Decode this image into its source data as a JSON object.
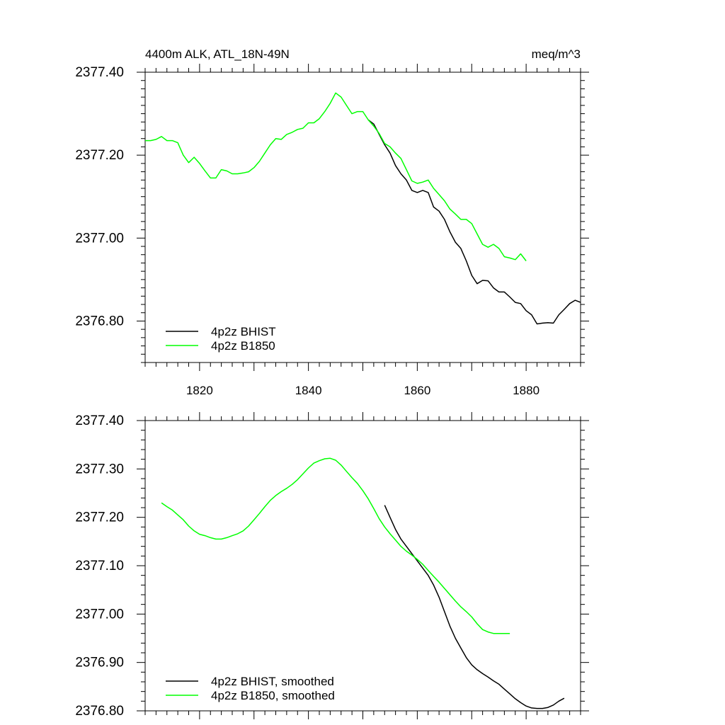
{
  "chart_data": [
    {
      "type": "line",
      "title": "4400m ALK, ATL_18N-49N",
      "units": "meq/m^3",
      "xlim": [
        1810,
        1890
      ],
      "ylim": [
        2376.7,
        2377.4
      ],
      "x_ticks": [
        "1820",
        "1840",
        "1860",
        "1880"
      ],
      "y_ticks": [
        "2376.80",
        "2377.00",
        "2377.20",
        "2377.40"
      ],
      "legend_position": "bottom-left",
      "series": [
        {
          "name": "4p2z BHIST",
          "color": "#000000",
          "x": [
            1851,
            1852,
            1853,
            1854,
            1855,
            1856,
            1857,
            1858,
            1859,
            1860,
            1861,
            1862,
            1863,
            1864,
            1865,
            1866,
            1867,
            1868,
            1869,
            1870,
            1871,
            1872,
            1873,
            1874,
            1875,
            1876,
            1877,
            1878,
            1879,
            1880,
            1881,
            1882,
            1883,
            1884,
            1885,
            1886,
            1887,
            1888,
            1889,
            1890
          ],
          "y": [
            2377.285,
            2377.275,
            2377.25,
            2377.225,
            2377.205,
            2377.175,
            2377.155,
            2377.14,
            2377.115,
            2377.11,
            2377.115,
            2377.11,
            2377.075,
            2377.065,
            2377.045,
            2377.015,
            2376.99,
            2376.975,
            2376.945,
            2376.91,
            2376.89,
            2376.898,
            2376.897,
            2376.88,
            2376.87,
            2376.87,
            2376.858,
            2376.845,
            2376.842,
            2376.825,
            2376.815,
            2376.793,
            2376.795,
            2376.796,
            2376.795,
            2376.815,
            2376.828,
            2376.842,
            2376.85,
            2376.845
          ]
        },
        {
          "name": "4p2z B1850",
          "color": "#00ff00",
          "x": [
            1810,
            1811,
            1812,
            1813,
            1814,
            1815,
            1816,
            1817,
            1818,
            1819,
            1820,
            1821,
            1822,
            1823,
            1824,
            1825,
            1826,
            1827,
            1828,
            1829,
            1830,
            1831,
            1832,
            1833,
            1834,
            1835,
            1836,
            1837,
            1838,
            1839,
            1840,
            1841,
            1842,
            1843,
            1844,
            1845,
            1846,
            1847,
            1848,
            1849,
            1850,
            1851,
            1852,
            1853,
            1854,
            1855,
            1856,
            1857,
            1858,
            1859,
            1860,
            1861,
            1862,
            1863,
            1864,
            1865,
            1866,
            1867,
            1868,
            1869,
            1870,
            1871,
            1872,
            1873,
            1874,
            1875,
            1876,
            1877,
            1878,
            1879,
            1880
          ],
          "y": [
            2377.235,
            2377.235,
            2377.238,
            2377.245,
            2377.235,
            2377.235,
            2377.23,
            2377.2,
            2377.182,
            2377.195,
            2377.18,
            2377.162,
            2377.145,
            2377.145,
            2377.165,
            2377.162,
            2377.155,
            2377.155,
            2377.157,
            2377.16,
            2377.17,
            2377.185,
            2377.205,
            2377.225,
            2377.24,
            2377.238,
            2377.25,
            2377.255,
            2377.262,
            2377.265,
            2377.278,
            2377.278,
            2377.288,
            2377.305,
            2377.325,
            2377.35,
            2377.34,
            2377.32,
            2377.3,
            2377.305,
            2377.305,
            2377.285,
            2377.27,
            2377.252,
            2377.228,
            2377.22,
            2377.205,
            2377.192,
            2377.165,
            2377.138,
            2377.132,
            2377.135,
            2377.14,
            2377.12,
            2377.105,
            2377.09,
            2377.07,
            2377.058,
            2377.045,
            2377.045,
            2377.035,
            2377.01,
            2376.985,
            2376.978,
            2376.985,
            2376.975,
            2376.955,
            2376.952,
            2376.948,
            2376.962,
            2376.945
          ]
        }
      ]
    },
    {
      "type": "line",
      "xlim": [
        1810,
        1890
      ],
      "ylim": [
        2376.8,
        2377.4
      ],
      "y_ticks": [
        "2376.80",
        "2376.90",
        "2377.00",
        "2377.10",
        "2377.20",
        "2377.30",
        "2377.40"
      ],
      "legend_position": "bottom-left",
      "series": [
        {
          "name": "4p2z BHIST, smoothed",
          "color": "#000000",
          "x": [
            1854,
            1855,
            1856,
            1857,
            1858,
            1859,
            1860,
            1861,
            1862,
            1863,
            1864,
            1865,
            1866,
            1867,
            1868,
            1869,
            1870,
            1871,
            1872,
            1873,
            1874,
            1875,
            1876,
            1877,
            1878,
            1879,
            1880,
            1881,
            1882,
            1883,
            1884,
            1885,
            1886,
            1887
          ],
          "y": [
            2377.225,
            2377.2,
            2377.175,
            2377.155,
            2377.14,
            2377.125,
            2377.11,
            2377.095,
            2377.08,
            2377.06,
            2377.035,
            2377.005,
            2376.975,
            2376.95,
            2376.93,
            2376.91,
            2376.895,
            2376.885,
            2376.877,
            2376.87,
            2376.862,
            2376.855,
            2376.845,
            2376.835,
            2376.825,
            2376.817,
            2376.81,
            2376.806,
            2376.805,
            2376.805,
            2376.807,
            2376.812,
            2376.82,
            2376.826
          ]
        },
        {
          "name": "4p2z B1850, smoothed",
          "color": "#00ff00",
          "x": [
            1813,
            1814,
            1815,
            1816,
            1817,
            1818,
            1819,
            1820,
            1821,
            1822,
            1823,
            1824,
            1825,
            1826,
            1827,
            1828,
            1829,
            1830,
            1831,
            1832,
            1833,
            1834,
            1835,
            1836,
            1837,
            1838,
            1839,
            1840,
            1841,
            1842,
            1843,
            1844,
            1845,
            1846,
            1847,
            1848,
            1849,
            1850,
            1851,
            1852,
            1853,
            1854,
            1855,
            1856,
            1857,
            1858,
            1859,
            1860,
            1861,
            1862,
            1863,
            1864,
            1865,
            1866,
            1867,
            1868,
            1869,
            1870,
            1871,
            1872,
            1873,
            1874,
            1875,
            1876,
            1877
          ],
          "y": [
            2377.23,
            2377.222,
            2377.215,
            2377.205,
            2377.195,
            2377.182,
            2377.172,
            2377.165,
            2377.162,
            2377.158,
            2377.155,
            2377.155,
            2377.158,
            2377.162,
            2377.166,
            2377.172,
            2377.182,
            2377.195,
            2377.208,
            2377.222,
            2377.235,
            2377.245,
            2377.253,
            2377.26,
            2377.268,
            2377.278,
            2377.29,
            2377.302,
            2377.312,
            2377.317,
            2377.321,
            2377.322,
            2377.318,
            2377.308,
            2377.295,
            2377.282,
            2377.27,
            2377.255,
            2377.238,
            2377.218,
            2377.197,
            2377.18,
            2377.166,
            2377.153,
            2377.14,
            2377.13,
            2377.122,
            2377.113,
            2377.103,
            2377.09,
            2377.078,
            2377.066,
            2377.053,
            2377.04,
            2377.027,
            2377.015,
            2377.005,
            2376.994,
            2376.98,
            2376.968,
            2376.963,
            2376.96,
            2376.96,
            2376.96,
            2376.96
          ]
        }
      ]
    }
  ]
}
